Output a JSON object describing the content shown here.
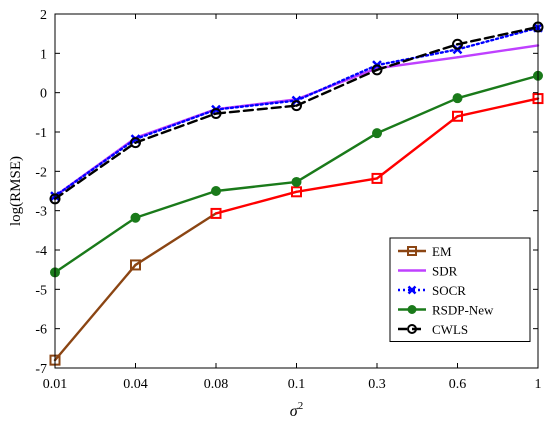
{
  "chart_data": {
    "type": "line",
    "xlabel": "σ",
    "xlabel_superscript": "2",
    "ylabel": "log(RMSE)",
    "categories": [
      "0.01",
      "0.04",
      "0.08",
      "0.1",
      "0.3",
      "0.6",
      "1"
    ],
    "ylim": [
      -7,
      2
    ],
    "yticks": [
      -7,
      -6,
      -5,
      -4,
      -3,
      -2,
      -1,
      0,
      1,
      2
    ],
    "grid": false,
    "legend_position": "bottom-right",
    "series": [
      {
        "name": "EM",
        "color": "#ff0000",
        "color_low": "#8b4513",
        "marker": "square",
        "line_style": "solid",
        "values": [
          -6.8,
          -4.38,
          -3.07,
          -2.52,
          -2.18,
          -0.6,
          -0.15
        ]
      },
      {
        "name": "SDR",
        "color": "#bf40ff",
        "marker": "none",
        "line_style": "solid",
        "values": [
          -2.63,
          -1.15,
          -0.42,
          -0.17,
          0.62,
          0.9,
          1.2
        ]
      },
      {
        "name": "SOCR",
        "color": "#0000ff",
        "marker": "x",
        "line_style": "dotted",
        "values": [
          -2.63,
          -1.18,
          -0.43,
          -0.2,
          0.7,
          1.1,
          1.65
        ]
      },
      {
        "name": "RSDP-New",
        "color": "#1a7a1a",
        "marker": "circle",
        "line_style": "solid",
        "values": [
          -4.57,
          -3.18,
          -2.5,
          -2.27,
          -1.03,
          -0.14,
          0.43
        ]
      },
      {
        "name": "CWLS",
        "color": "#000000",
        "marker": "open-circle",
        "line_style": "dashed",
        "values": [
          -2.7,
          -1.27,
          -0.53,
          -0.33,
          0.58,
          1.23,
          1.67
        ]
      }
    ]
  }
}
